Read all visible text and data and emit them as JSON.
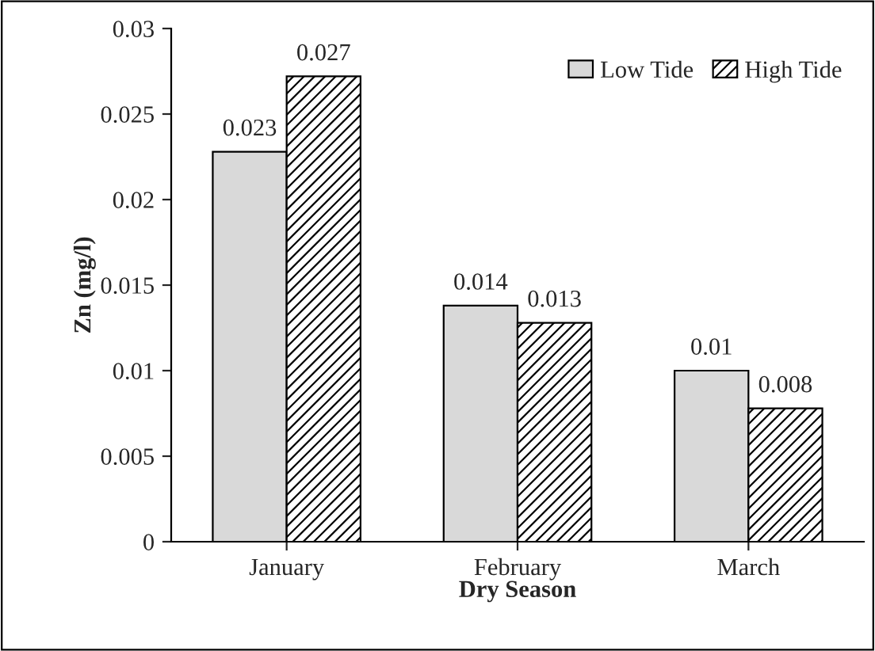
{
  "chart_data": {
    "type": "bar",
    "xlabel": "Dry Season",
    "ylabel": "Zn (mg/l)",
    "categories": [
      "January",
      "February",
      "March"
    ],
    "series": [
      {
        "name": "Low Tide",
        "color": "#d9d9d9",
        "values": [
          0.0228,
          0.0138,
          0.01
        ],
        "value_labels": [
          "0.023",
          "0.014",
          "0.01"
        ]
      },
      {
        "name": "High Tide",
        "color": "#000000",
        "values": [
          0.0272,
          0.0128,
          0.0078
        ],
        "value_labels": [
          "0.027",
          "0.013",
          "0.008"
        ]
      }
    ],
    "ylim": [
      0,
      0.03
    ],
    "yticks": [
      0,
      0.005,
      0.01,
      0.015,
      0.02,
      0.025,
      0.03
    ],
    "grid": false,
    "legend": "top right"
  }
}
